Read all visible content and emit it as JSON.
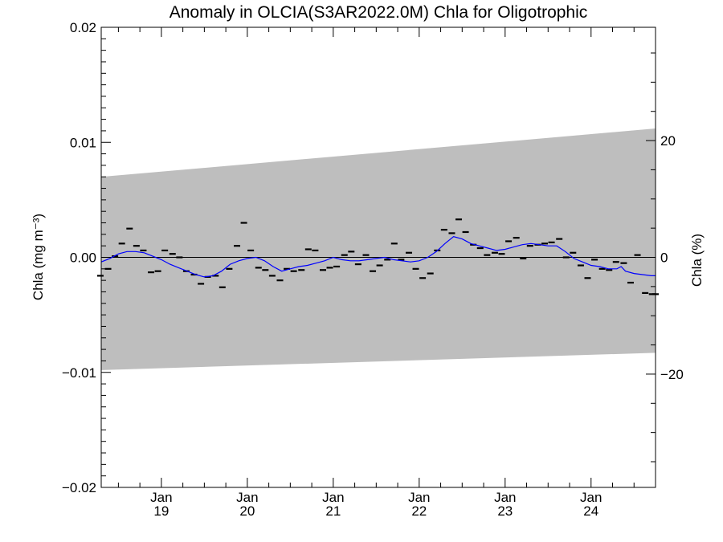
{
  "chart_data": {
    "type": "line",
    "title": "Anomaly in OLCIA(S3AR2022.0M) Chla for Oligotrophic",
    "ylabel": "Chla (mg m⁻³)",
    "y2label": "Chla (%)",
    "xlim": [
      2018.3,
      2024.75
    ],
    "ylim": [
      -0.02,
      0.02
    ],
    "y2lim": [
      -39.4,
      39.4
    ],
    "y_ticks": [
      {
        "value": 0.02,
        "label": "0.02"
      },
      {
        "value": 0.01,
        "label": "0.01"
      },
      {
        "value": 0.0,
        "label": "0.00"
      },
      {
        "value": -0.01,
        "label": "−0.01"
      },
      {
        "value": -0.02,
        "label": "−0.02"
      }
    ],
    "y2_ticks": [
      {
        "value": 20,
        "label": "20"
      },
      {
        "value": 0,
        "label": "0"
      },
      {
        "value": -20,
        "label": "−20"
      }
    ],
    "x_ticks": [
      {
        "value": 2019.0,
        "month": "Jan",
        "year": "19"
      },
      {
        "value": 2020.0,
        "month": "Jan",
        "year": "20"
      },
      {
        "value": 2021.0,
        "month": "Jan",
        "year": "21"
      },
      {
        "value": 2022.0,
        "month": "Jan",
        "year": "22"
      },
      {
        "value": 2023.0,
        "month": "Jan",
        "year": "23"
      },
      {
        "value": 2024.0,
        "month": "Jan",
        "year": "24"
      }
    ],
    "uncertainty_band": {
      "x": [
        2018.3,
        2024.75
      ],
      "upper": [
        0.007,
        0.0112
      ],
      "lower": [
        -0.0098,
        -0.0083
      ],
      "color": "#bebebe"
    },
    "zero_line": 0.0,
    "series": [
      {
        "style": "markers",
        "color": "#000000",
        "x": [
          2018.29,
          2018.38,
          2018.46,
          2018.54,
          2018.63,
          2018.71,
          2018.79,
          2018.88,
          2018.96,
          2019.04,
          2019.13,
          2019.21,
          2019.29,
          2019.38,
          2019.46,
          2019.54,
          2019.63,
          2019.71,
          2019.79,
          2019.88,
          2019.96,
          2020.04,
          2020.13,
          2020.21,
          2020.29,
          2020.38,
          2020.46,
          2020.54,
          2020.63,
          2020.71,
          2020.79,
          2020.88,
          2020.96,
          2021.04,
          2021.13,
          2021.21,
          2021.29,
          2021.38,
          2021.46,
          2021.54,
          2021.63,
          2021.71,
          2021.79,
          2021.88,
          2021.96,
          2022.04,
          2022.13,
          2022.21,
          2022.29,
          2022.38,
          2022.46,
          2022.54,
          2022.63,
          2022.71,
          2022.79,
          2022.88,
          2022.96,
          2023.04,
          2023.13,
          2023.21,
          2023.29,
          2023.38,
          2023.46,
          2023.54,
          2023.63,
          2023.71,
          2023.79,
          2023.88,
          2023.96,
          2024.04,
          2024.13,
          2024.21,
          2024.29,
          2024.38,
          2024.46,
          2024.54,
          2024.63,
          2024.71,
          2024.75
        ],
        "y": [
          -0.0016,
          -0.001,
          0.0001,
          0.0012,
          0.0025,
          0.001,
          0.0006,
          -0.0013,
          -0.0012,
          0.0006,
          0.0003,
          0.0,
          -0.0012,
          -0.0015,
          -0.0023,
          -0.0017,
          -0.0016,
          -0.0026,
          -0.001,
          0.001,
          0.003,
          0.0006,
          -0.0009,
          -0.0011,
          -0.0016,
          -0.002,
          -0.001,
          -0.0012,
          -0.0011,
          0.0007,
          0.0006,
          -0.0011,
          -0.0009,
          -0.0008,
          0.0002,
          0.0005,
          -0.0006,
          0.0002,
          -0.0012,
          -0.0007,
          -0.0002,
          0.0012,
          -0.0002,
          0.0004,
          -0.001,
          -0.0018,
          -0.0014,
          0.0006,
          0.0024,
          0.0021,
          0.0033,
          0.0022,
          0.0011,
          0.0008,
          0.0002,
          0.0004,
          0.0003,
          0.0014,
          0.0017,
          -0.0001,
          0.001,
          0.0011,
          0.0012,
          0.0013,
          0.0016,
          0.0,
          0.0004,
          -0.0007,
          -0.0018,
          -0.0002,
          -0.001,
          -0.0011,
          -0.0004,
          -0.0005,
          -0.0022,
          0.0002,
          -0.0031,
          -0.0032,
          -0.0032
        ]
      },
      {
        "style": "line",
        "color": "#0000ff",
        "x": [
          2018.3,
          2018.4,
          2018.5,
          2018.6,
          2018.7,
          2018.8,
          2018.9,
          2019.0,
          2019.1,
          2019.2,
          2019.3,
          2019.4,
          2019.5,
          2019.6,
          2019.7,
          2019.8,
          2019.9,
          2020.0,
          2020.1,
          2020.2,
          2020.3,
          2020.4,
          2020.5,
          2020.6,
          2020.7,
          2020.8,
          2020.9,
          2021.0,
          2021.1,
          2021.2,
          2021.3,
          2021.4,
          2021.5,
          2021.6,
          2021.7,
          2021.8,
          2021.9,
          2022.0,
          2022.1,
          2022.2,
          2022.3,
          2022.4,
          2022.5,
          2022.6,
          2022.7,
          2022.8,
          2022.9,
          2023.0,
          2023.1,
          2023.2,
          2023.3,
          2023.4,
          2023.5,
          2023.6,
          2023.7,
          2023.8,
          2023.9,
          2024.0,
          2024.1,
          2024.2,
          2024.3,
          2024.35,
          2024.4,
          2024.5,
          2024.6,
          2024.7,
          2024.75
        ],
        "y": [
          -0.0004,
          -0.0001,
          0.0003,
          0.0005,
          0.0005,
          0.0004,
          0.0001,
          -0.0002,
          -0.0006,
          -0.0009,
          -0.0012,
          -0.0015,
          -0.0017,
          -0.0016,
          -0.0012,
          -0.0006,
          -0.0003,
          -0.0001,
          0.0,
          -0.0003,
          -0.0008,
          -0.0012,
          -0.001,
          -0.0008,
          -0.0007,
          -0.0005,
          -0.0003,
          0.0,
          -0.0002,
          -0.0003,
          -0.0003,
          -0.0002,
          -0.0001,
          0.0,
          -0.0002,
          -0.0003,
          -0.0004,
          -0.0003,
          0.0,
          0.0005,
          0.0012,
          0.0018,
          0.0016,
          0.0012,
          0.001,
          0.0008,
          0.0006,
          0.0007,
          0.0009,
          0.0011,
          0.0012,
          0.0011,
          0.001,
          0.001,
          0.0005,
          -0.0001,
          -0.0004,
          -0.0007,
          -0.0008,
          -0.001,
          -0.001,
          -0.0008,
          -0.0012,
          -0.0014,
          -0.0015,
          -0.0016,
          -0.0016
        ]
      }
    ]
  }
}
